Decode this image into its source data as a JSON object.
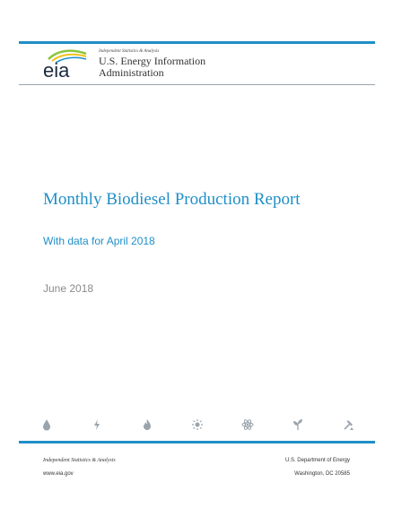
{
  "header": {
    "logo_text": "eia",
    "tagline": "Independent Statistics & Analysis",
    "agency_line1": "U.S. Energy Information",
    "agency_line2": "Administration"
  },
  "report": {
    "title": "Monthly Biodiesel Production Report",
    "subtitle": "With data for April 2018",
    "date": "June 2018"
  },
  "icons": [
    "drop-icon",
    "lightning-icon",
    "flame-icon",
    "sun-icon",
    "atom-icon",
    "plant-icon",
    "hammer-icon"
  ],
  "footer": {
    "left_line1": "Independent Statistics & Analysis",
    "left_line2": "www.eia.gov",
    "right_line1": "U.S. Department of Energy",
    "right_line2": "Washington, DC 20585"
  },
  "colors": {
    "accent": "#1f8fc7",
    "logo_green": "#8cc63e",
    "logo_yellow": "#f2c21b",
    "icon_gray": "#9aa4ad"
  }
}
